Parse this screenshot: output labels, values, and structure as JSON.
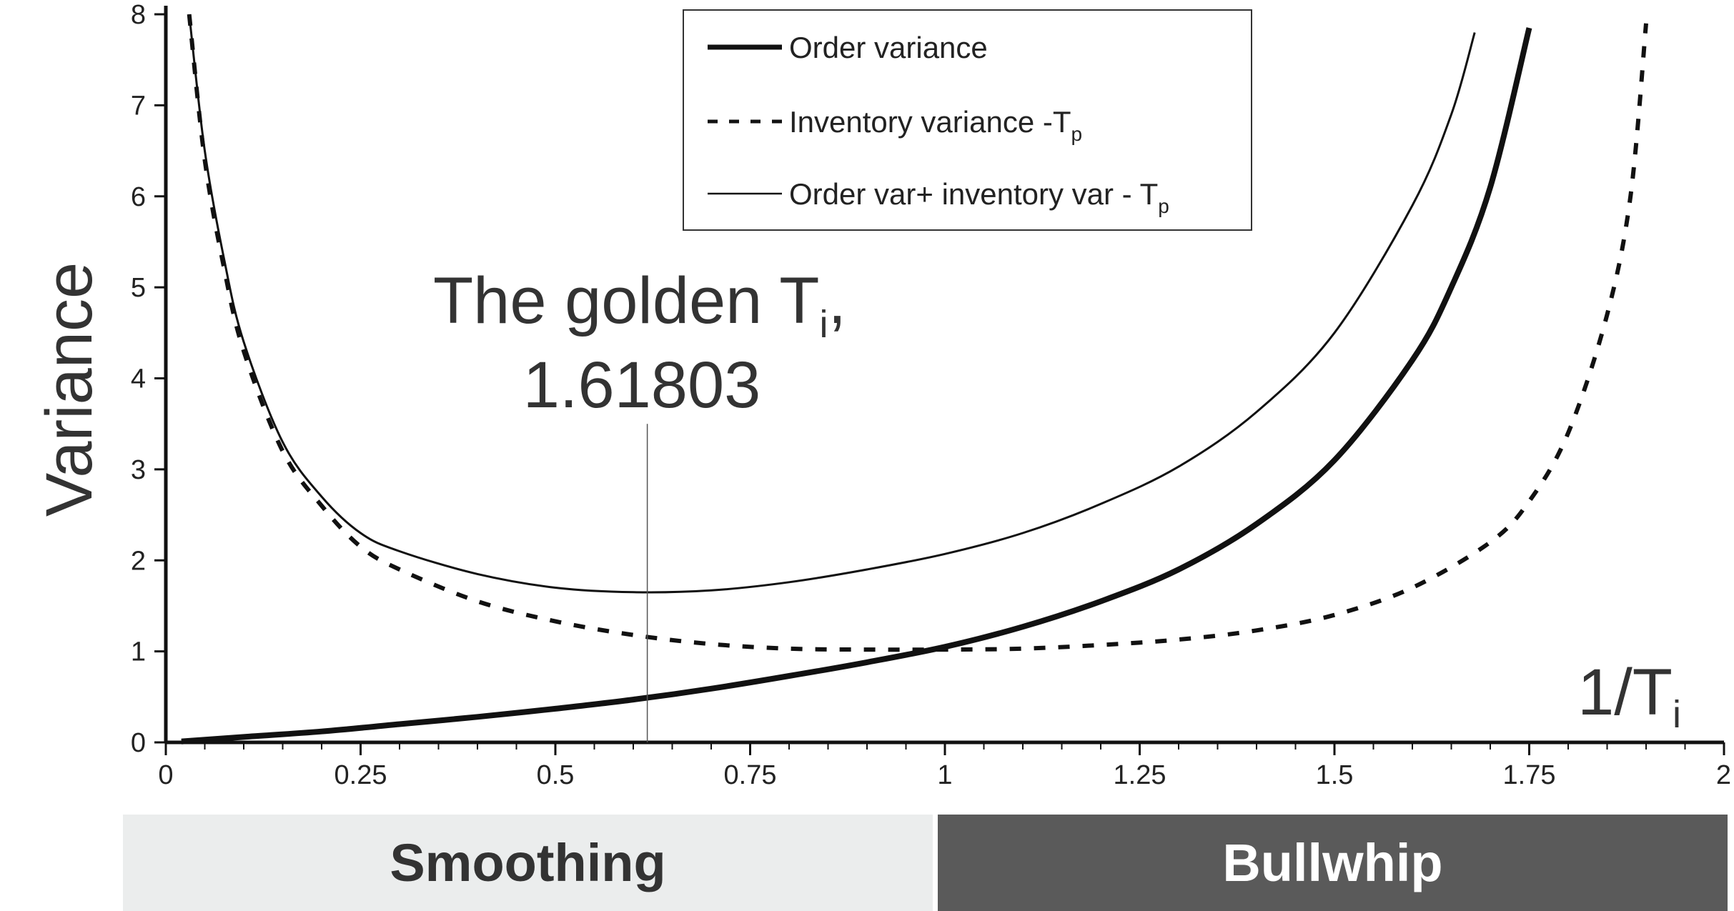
{
  "chart_data": {
    "type": "line",
    "xlabel": "1/T",
    "xlabel_sub": "i",
    "ylabel": "Variance",
    "xlim": [
      0,
      2
    ],
    "ylim": [
      0,
      8
    ],
    "x_ticks": [
      "0",
      "0.25",
      "0.5",
      "0.75",
      "1",
      "1.25",
      "1.5",
      "1.75",
      "2"
    ],
    "x_tick_values": [
      0,
      0.25,
      0.5,
      0.75,
      1,
      1.25,
      1.5,
      1.75,
      2
    ],
    "x_minor_step": 0.05,
    "y_ticks": [
      "0",
      "1",
      "2",
      "3",
      "4",
      "5",
      "6",
      "7",
      "8"
    ],
    "y_tick_values": [
      0,
      1,
      2,
      3,
      4,
      5,
      6,
      7,
      8
    ],
    "legend_position": "top-center",
    "grid": false,
    "series": [
      {
        "name": "Order variance",
        "style": "thick-solid",
        "x": [
          0.02,
          0.1,
          0.2,
          0.3,
          0.4,
          0.5,
          0.6,
          0.7,
          0.8,
          0.9,
          1.0,
          1.1,
          1.2,
          1.3,
          1.4,
          1.5,
          1.6,
          1.65,
          1.7,
          1.75
        ],
        "y": [
          0.01,
          0.06,
          0.12,
          0.2,
          0.28,
          0.37,
          0.47,
          0.59,
          0.73,
          0.88,
          1.05,
          1.27,
          1.55,
          1.9,
          2.4,
          3.1,
          4.2,
          5.0,
          6.1,
          7.85
        ]
      },
      {
        "name": "Inventory variance -T",
        "name_sub": "p",
        "style": "dashed",
        "x": [
          0.03,
          0.05,
          0.075,
          0.1,
          0.15,
          0.2,
          0.25,
          0.3,
          0.4,
          0.5,
          0.6,
          0.7,
          0.8,
          0.9,
          1.0,
          1.1,
          1.2,
          1.3,
          1.4,
          1.5,
          1.6,
          1.7,
          1.75,
          1.8,
          1.85,
          1.88,
          1.9
        ],
        "y": [
          8.0,
          6.4,
          5.2,
          4.3,
          3.2,
          2.6,
          2.15,
          1.9,
          1.55,
          1.33,
          1.18,
          1.08,
          1.03,
          1.02,
          1.02,
          1.03,
          1.07,
          1.13,
          1.23,
          1.4,
          1.7,
          2.2,
          2.65,
          3.4,
          4.7,
          6.0,
          7.9
        ]
      },
      {
        "name": "Order var+ inventory var - T",
        "name_sub": "p",
        "style": "thin-solid",
        "x": [
          0.03,
          0.05,
          0.075,
          0.1,
          0.15,
          0.2,
          0.25,
          0.3,
          0.4,
          0.5,
          0.6,
          0.7,
          0.8,
          0.9,
          1.0,
          1.1,
          1.2,
          1.3,
          1.4,
          1.5,
          1.6,
          1.65,
          1.68
        ],
        "y": [
          8.0,
          6.5,
          5.3,
          4.4,
          3.3,
          2.7,
          2.3,
          2.1,
          1.85,
          1.7,
          1.65,
          1.67,
          1.76,
          1.9,
          2.07,
          2.3,
          2.62,
          3.03,
          3.63,
          4.5,
          5.9,
          6.9,
          7.8
        ]
      }
    ],
    "annotation": {
      "line1": "The golden T",
      "line1_sub": "i",
      "line1_suffix": ",",
      "line2": "1.61803",
      "x": 0.618,
      "y_bottom": 0,
      "y_top": 3.5
    }
  },
  "regions": {
    "smoothing_label": "Smoothing",
    "bullwhip_label": "Bullwhip"
  }
}
